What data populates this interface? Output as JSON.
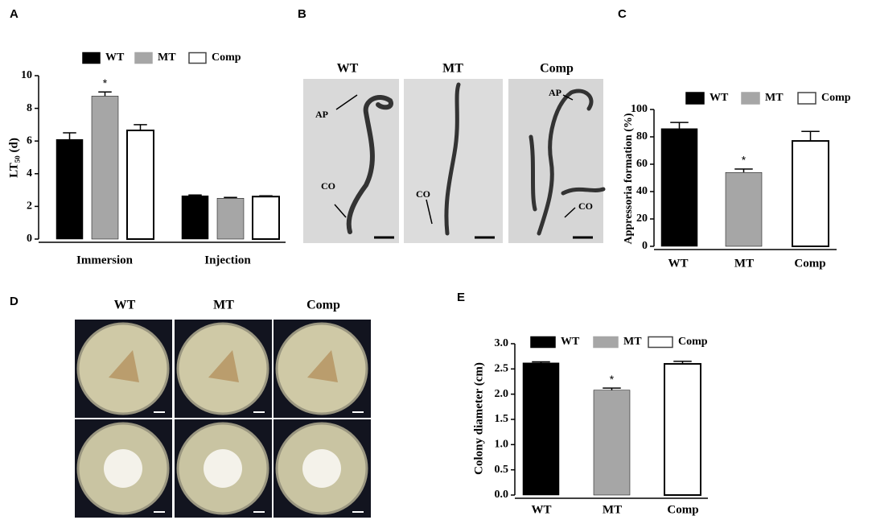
{
  "panel_labels": [
    "A",
    "B",
    "C",
    "D",
    "E"
  ],
  "chart_data": [
    {
      "type": "grouped-bar",
      "ylabel": "LT₅₀ (d)",
      "categories": [
        "Immersion",
        "Injection"
      ],
      "series": [
        {
          "name": "WT",
          "color": "#000000",
          "values": [
            6.1,
            2.65
          ],
          "errors": [
            0.4,
            0.05
          ]
        },
        {
          "name": "MT",
          "color": "#a6a6a6",
          "values": [
            8.75,
            2.5
          ],
          "errors": [
            0.25,
            0.05
          ]
        },
        {
          "name": "Comp",
          "color": "#ffffff",
          "values": [
            6.65,
            2.6
          ],
          "errors": [
            0.35,
            0.05
          ]
        }
      ],
      "annotations": [
        {
          "text": "*",
          "series": 1,
          "category": 0
        }
      ],
      "ylim": [
        0,
        10
      ],
      "yticks": [
        0,
        2,
        4,
        6,
        8,
        10
      ]
    },
    {
      "type": "bar",
      "ylabel": "Appressoria formation (%)",
      "categories": [
        "WT",
        "MT",
        "Comp"
      ],
      "values": [
        86,
        54,
        77
      ],
      "errors": [
        4.5,
        2.5,
        7
      ],
      "colors": [
        "#000000",
        "#a6a6a6",
        "#ffffff"
      ],
      "annotations": [
        {
          "text": "*",
          "category": 1
        }
      ],
      "ylim": [
        0,
        100
      ],
      "yticks": [
        0,
        20,
        40,
        60,
        80,
        100
      ]
    },
    {
      "type": "bar",
      "ylabel": "Colony diameter (cm)",
      "categories": [
        "WT",
        "MT",
        "Comp"
      ],
      "values": [
        2.62,
        2.08,
        2.6
      ],
      "errors": [
        0.02,
        0.04,
        0.05
      ],
      "colors": [
        "#000000",
        "#a6a6a6",
        "#ffffff"
      ],
      "annotations": [
        {
          "text": "*",
          "category": 1
        }
      ],
      "ylim": [
        0,
        3
      ],
      "yticks": [
        {
          "value": 0,
          "label": "0.0"
        },
        0.5,
        {
          "value": 1,
          "label": "1.0"
        },
        1.5,
        {
          "value": 2,
          "label": "2.0"
        },
        2.5,
        {
          "value": 3,
          "label": "3.0"
        }
      ]
    }
  ],
  "micrographs": {
    "titles": [
      "WT",
      "MT",
      "Comp"
    ],
    "labels": [
      "AP",
      "CO",
      "CO",
      "AP",
      "CO"
    ]
  },
  "plates": {
    "titles": [
      "WT",
      "MT",
      "Comp"
    ]
  }
}
